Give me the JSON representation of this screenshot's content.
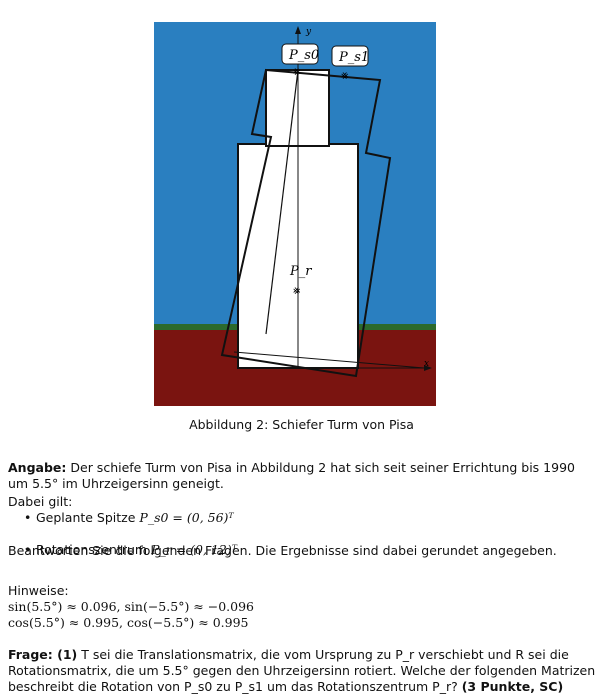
{
  "figure": {
    "labels": {
      "ps0": "P_s0",
      "ps1": "P_s1",
      "pr": "P_r",
      "x_axis": "x",
      "y_axis": "y"
    },
    "colors": {
      "sky": "#2a7fc0",
      "grass": "#2c6a2c",
      "ground": "#7a1410",
      "tower": "#ffffff",
      "outline": "#111111"
    }
  },
  "caption": "Abbildung 2: Schiefer Turm von Pisa",
  "angabe": {
    "label": "Angabe:",
    "text": "Der schiefe Turm von Pisa in Abbildung 2 hat sich seit seiner Errichtung bis 1990 um 5.5° im Uhrzeigersinn geneigt.",
    "given_label": "Dabei gilt:",
    "items": [
      {
        "label": "Geplante Spitze",
        "math": "P_s0 = (0, 56)ᵀ"
      },
      {
        "label": "Rotationszentrum",
        "math": "P_r = (0, 12)ᵀ"
      }
    ],
    "note": "Beantworten Sie die folgenden Fragen. Die Ergebnisse sind dabei gerundet angegeben."
  },
  "hinweise": {
    "label": "Hinweise:",
    "line1": "sin(5.5°) ≈ 0.096, sin(−5.5°) ≈ −0.096",
    "line2": "cos(5.5°) ≈ 0.995, cos(−5.5°) ≈ 0.995"
  },
  "frage": {
    "label": "Frage: (1)",
    "text": "T sei die Translationsmatrix, die vom Ursprung zu P_r verschiebt und R sei die Rotationsmatrix, die um 5.5° gegen den Uhrzeigersinn rotiert. Welche der folgenden Matrizen beschreibt die Rotation von P_s0 zu P_s1 um das Rotationszentrum P_r?",
    "points": "(3 Punkte, SC)"
  }
}
